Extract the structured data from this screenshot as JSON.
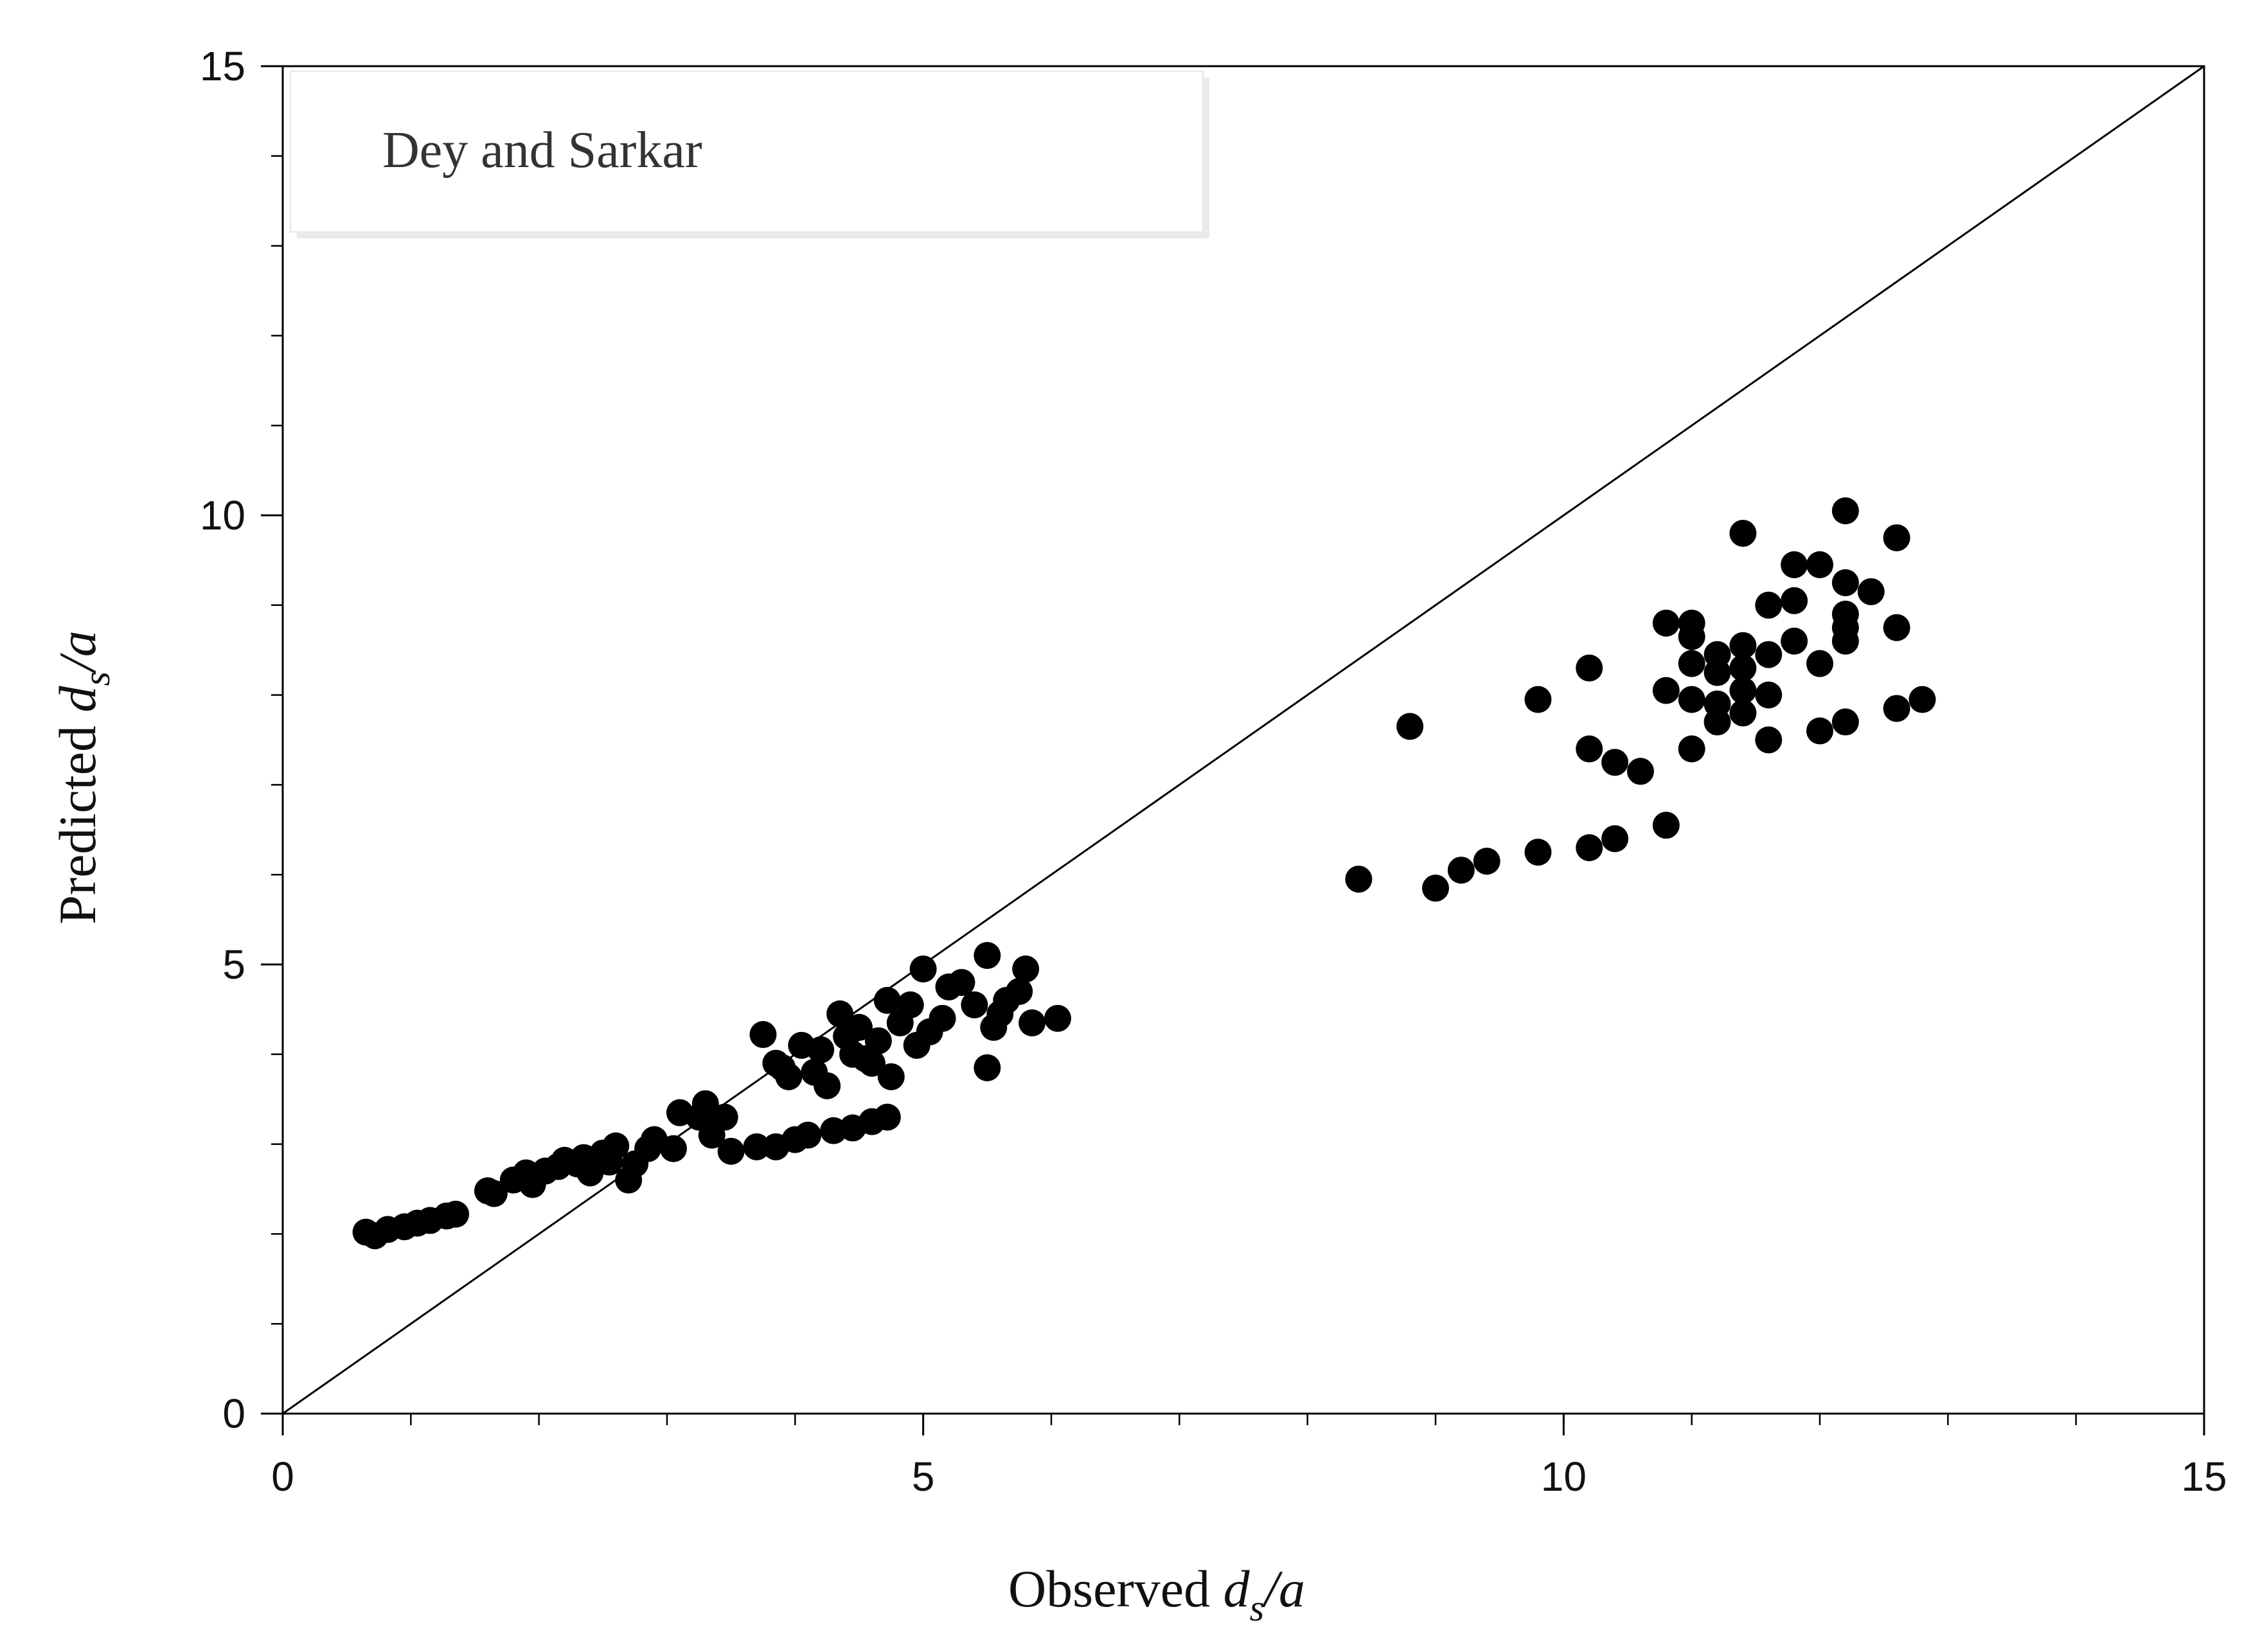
{
  "chart_data": {
    "type": "scatter",
    "title": "",
    "legend_box": "Dey and Sarkar",
    "legend_position": "top-left",
    "xlabel": {
      "prefix": "Observed ",
      "var": "d",
      "sub": "s",
      "suffix": "/a"
    },
    "ylabel": {
      "prefix": "Predicted ",
      "var": "d",
      "sub": "s",
      "suffix": "/a"
    },
    "xlim": [
      0,
      15
    ],
    "ylim": [
      0,
      15
    ],
    "x_ticks": [
      0,
      5,
      10,
      15
    ],
    "y_ticks": [
      0,
      5,
      10,
      15
    ],
    "x_tick_labels": [
      "0",
      "5",
      "10",
      "15"
    ],
    "y_tick_labels": [
      "0",
      "5",
      "10",
      "15"
    ],
    "minor_tick_step": 1,
    "grid": false,
    "reference_line": {
      "label": "",
      "from": [
        0,
        0
      ],
      "to": [
        15,
        15
      ]
    },
    "marker_color": "#000000",
    "points": [
      [
        0.65,
        2.02
      ],
      [
        0.72,
        1.98
      ],
      [
        0.82,
        2.05
      ],
      [
        0.95,
        2.08
      ],
      [
        1.05,
        2.12
      ],
      [
        1.15,
        2.15
      ],
      [
        1.28,
        2.2
      ],
      [
        1.35,
        2.22
      ],
      [
        1.6,
        2.48
      ],
      [
        1.65,
        2.45
      ],
      [
        1.8,
        2.6
      ],
      [
        1.9,
        2.68
      ],
      [
        1.95,
        2.55
      ],
      [
        2.05,
        2.7
      ],
      [
        2.15,
        2.75
      ],
      [
        2.2,
        2.82
      ],
      [
        2.3,
        2.78
      ],
      [
        2.35,
        2.85
      ],
      [
        2.4,
        2.68
      ],
      [
        2.5,
        2.9
      ],
      [
        2.55,
        2.8
      ],
      [
        2.6,
        2.98
      ],
      [
        2.7,
        2.6
      ],
      [
        2.75,
        2.78
      ],
      [
        2.85,
        2.95
      ],
      [
        2.9,
        3.05
      ],
      [
        3.05,
        2.95
      ],
      [
        3.1,
        3.35
      ],
      [
        3.25,
        3.3
      ],
      [
        3.3,
        3.45
      ],
      [
        3.35,
        3.1
      ],
      [
        3.45,
        3.3
      ],
      [
        3.5,
        2.92
      ],
      [
        3.7,
        2.97
      ],
      [
        3.75,
        4.22
      ],
      [
        3.85,
        3.9
      ],
      [
        3.9,
        3.85
      ],
      [
        3.95,
        3.75
      ],
      [
        4.05,
        4.1
      ],
      [
        4.15,
        3.8
      ],
      [
        4.2,
        4.05
      ],
      [
        4.25,
        3.65
      ],
      [
        4.35,
        4.45
      ],
      [
        4.4,
        4.2
      ],
      [
        4.45,
        4.0
      ],
      [
        4.5,
        4.3
      ],
      [
        4.55,
        3.95
      ],
      [
        4.6,
        3.9
      ],
      [
        4.65,
        4.15
      ],
      [
        4.72,
        4.6
      ],
      [
        4.75,
        3.75
      ],
      [
        4.82,
        4.35
      ],
      [
        4.9,
        4.55
      ],
      [
        4.95,
        4.1
      ],
      [
        5.0,
        4.95
      ],
      [
        5.05,
        4.25
      ],
      [
        5.15,
        4.4
      ],
      [
        5.2,
        4.75
      ],
      [
        5.3,
        4.8
      ],
      [
        5.4,
        4.55
      ],
      [
        5.5,
        5.1
      ],
      [
        5.55,
        4.3
      ],
      [
        5.5,
        3.85
      ],
      [
        5.6,
        4.45
      ],
      [
        5.65,
        4.6
      ],
      [
        5.75,
        4.7
      ],
      [
        5.8,
        4.95
      ],
      [
        5.85,
        4.35
      ],
      [
        6.05,
        4.4
      ],
      [
        3.85,
        2.97
      ],
      [
        4.0,
        3.05
      ],
      [
        4.1,
        3.1
      ],
      [
        4.3,
        3.15
      ],
      [
        4.45,
        3.18
      ],
      [
        4.6,
        3.25
      ],
      [
        4.72,
        3.3
      ],
      [
        8.4,
        5.95
      ],
      [
        8.8,
        7.65
      ],
      [
        9.0,
        5.85
      ],
      [
        9.2,
        6.05
      ],
      [
        9.4,
        6.15
      ],
      [
        9.8,
        6.25
      ],
      [
        9.8,
        7.95
      ],
      [
        10.2,
        6.3
      ],
      [
        10.2,
        7.4
      ],
      [
        10.2,
        8.3
      ],
      [
        10.4,
        6.4
      ],
      [
        10.4,
        7.25
      ],
      [
        10.6,
        7.15
      ],
      [
        10.8,
        6.55
      ],
      [
        10.8,
        8.05
      ],
      [
        10.8,
        8.8
      ],
      [
        11.0,
        7.4
      ],
      [
        11.0,
        7.95
      ],
      [
        11.0,
        8.35
      ],
      [
        11.0,
        8.65
      ],
      [
        11.0,
        8.8
      ],
      [
        11.2,
        7.7
      ],
      [
        11.2,
        7.9
      ],
      [
        11.2,
        8.25
      ],
      [
        11.2,
        8.45
      ],
      [
        11.4,
        7.8
      ],
      [
        11.4,
        8.05
      ],
      [
        11.4,
        8.3
      ],
      [
        11.4,
        8.55
      ],
      [
        11.4,
        9.8
      ],
      [
        11.6,
        7.5
      ],
      [
        11.6,
        8.0
      ],
      [
        11.6,
        8.45
      ],
      [
        11.6,
        9.0
      ],
      [
        11.8,
        8.6
      ],
      [
        11.8,
        9.05
      ],
      [
        11.8,
        9.45
      ],
      [
        12.0,
        7.6
      ],
      [
        12.0,
        8.35
      ],
      [
        12.0,
        9.45
      ],
      [
        12.2,
        7.7
      ],
      [
        12.2,
        8.6
      ],
      [
        12.2,
        8.75
      ],
      [
        12.2,
        8.9
      ],
      [
        12.2,
        9.25
      ],
      [
        12.2,
        10.05
      ],
      [
        12.4,
        9.15
      ],
      [
        12.6,
        7.85
      ],
      [
        12.6,
        8.75
      ],
      [
        12.6,
        9.75
      ],
      [
        12.8,
        7.95
      ]
    ]
  }
}
